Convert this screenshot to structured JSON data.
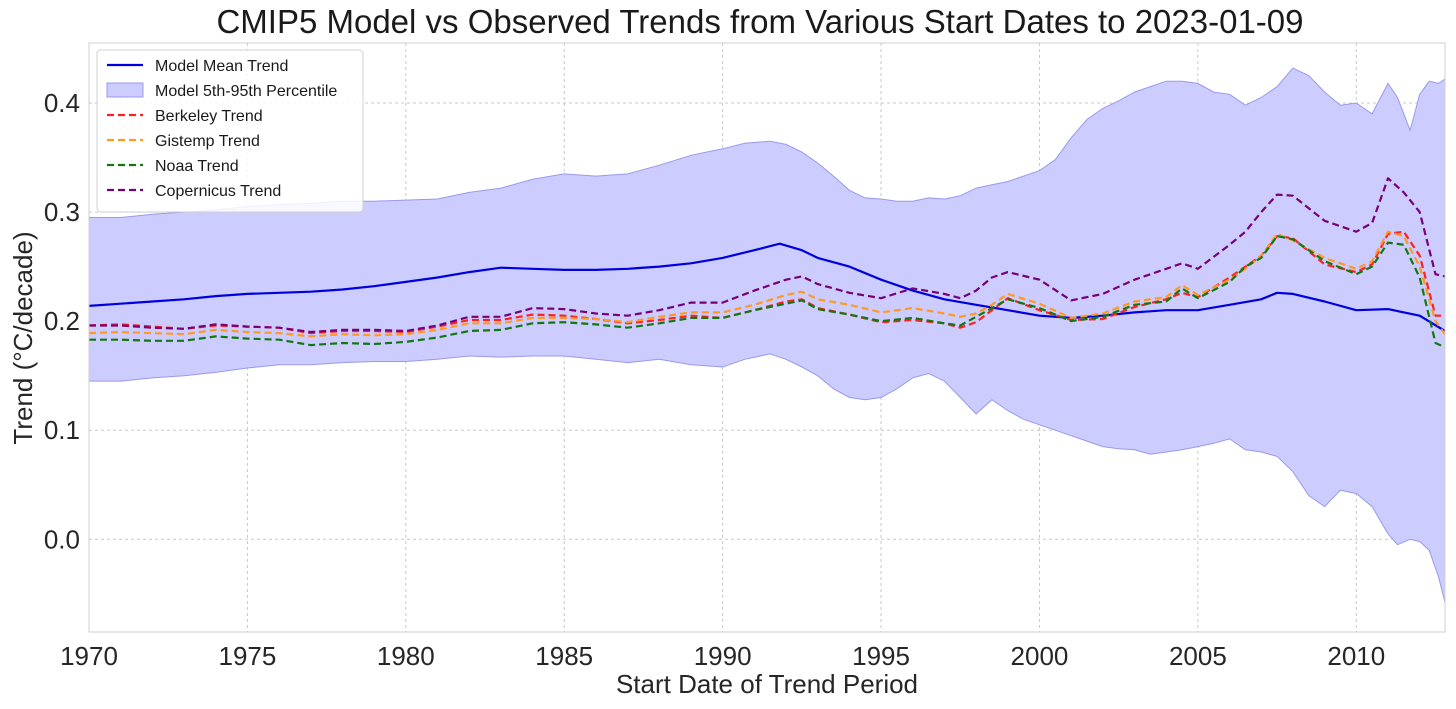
{
  "chart_data": {
    "type": "line",
    "title": "CMIP5 Model vs Observed Trends from Various Start Dates to 2023-01-09",
    "xlabel": "Start Date of Trend Period",
    "ylabel": "Trend (°C/decade)",
    "xlim": [
      1970,
      2012.8
    ],
    "ylim": [
      -0.085,
      0.455
    ],
    "xticks": [
      1970,
      1975,
      1980,
      1985,
      1990,
      1995,
      2000,
      2005,
      2010
    ],
    "xtick_labels": [
      "1970",
      "1975",
      "1980",
      "1985",
      "1990",
      "1995",
      "2000",
      "2005",
      "2010"
    ],
    "yticks": [
      0.0,
      0.1,
      0.2,
      0.3,
      0.4
    ],
    "ytick_labels": [
      "0.0",
      "0.1",
      "0.2",
      "0.3",
      "0.4"
    ],
    "grid": true,
    "legend_position": "top-left",
    "band": {
      "name": "Model 5th-95th Percentile",
      "color": "#ccccff",
      "edge_color": "#9999ee",
      "x": [
        1970,
        1971,
        1972,
        1973,
        1974,
        1975,
        1976,
        1977,
        1978,
        1979,
        1980,
        1981,
        1982,
        1983,
        1984,
        1985,
        1986,
        1987,
        1988,
        1989,
        1990,
        1990.7,
        1991.5,
        1992,
        1992.5,
        1993,
        1993.5,
        1994,
        1994.5,
        1995,
        1995.5,
        1996,
        1996.5,
        1997,
        1997.5,
        1998,
        1998.5,
        1999,
        1999.5,
        2000,
        2000.5,
        2001,
        2001.5,
        2002,
        2002.5,
        2003,
        2003.5,
        2004,
        2004.5,
        2005,
        2005.5,
        2006,
        2006.5,
        2007,
        2007.5,
        2008,
        2008.5,
        2009,
        2009.5,
        2010,
        2010.5,
        2011,
        2011.3,
        2011.7,
        2012,
        2012.3,
        2012.6,
        2012.8
      ],
      "lower": [
        0.145,
        0.145,
        0.148,
        0.15,
        0.153,
        0.157,
        0.16,
        0.16,
        0.162,
        0.163,
        0.163,
        0.165,
        0.168,
        0.167,
        0.168,
        0.168,
        0.165,
        0.162,
        0.165,
        0.16,
        0.158,
        0.165,
        0.17,
        0.165,
        0.158,
        0.15,
        0.138,
        0.13,
        0.128,
        0.13,
        0.138,
        0.148,
        0.152,
        0.145,
        0.13,
        0.115,
        0.128,
        0.118,
        0.11,
        0.105,
        0.1,
        0.095,
        0.09,
        0.085,
        0.083,
        0.082,
        0.078,
        0.08,
        0.082,
        0.085,
        0.088,
        0.092,
        0.082,
        0.08,
        0.076,
        0.062,
        0.04,
        0.03,
        0.045,
        0.042,
        0.03,
        0.005,
        -0.005,
        0.0,
        -0.002,
        -0.01,
        -0.035,
        -0.058
      ],
      "upper": [
        0.295,
        0.295,
        0.298,
        0.3,
        0.302,
        0.305,
        0.307,
        0.308,
        0.31,
        0.31,
        0.311,
        0.312,
        0.318,
        0.322,
        0.33,
        0.335,
        0.333,
        0.335,
        0.343,
        0.352,
        0.358,
        0.363,
        0.365,
        0.362,
        0.355,
        0.345,
        0.333,
        0.32,
        0.313,
        0.312,
        0.31,
        0.31,
        0.313,
        0.312,
        0.315,
        0.322,
        0.325,
        0.328,
        0.333,
        0.338,
        0.348,
        0.368,
        0.385,
        0.395,
        0.402,
        0.41,
        0.415,
        0.42,
        0.42,
        0.418,
        0.41,
        0.408,
        0.398,
        0.405,
        0.415,
        0.432,
        0.425,
        0.41,
        0.398,
        0.4,
        0.39,
        0.418,
        0.405,
        0.375,
        0.408,
        0.42,
        0.418,
        0.422
      ]
    },
    "series": [
      {
        "name": "Model Mean Trend",
        "color": "#0000dd",
        "dash": "solid",
        "x": [
          1970,
          1971,
          1972,
          1973,
          1974,
          1975,
          1976,
          1977,
          1978,
          1979,
          1980,
          1981,
          1982,
          1983,
          1984,
          1985,
          1986,
          1987,
          1988,
          1989,
          1990,
          1991,
          1991.8,
          1992.5,
          1993,
          1994,
          1995,
          1996,
          1997,
          1998,
          1999,
          2000,
          2001,
          2002,
          2003,
          2004,
          2005,
          2006,
          2007,
          2007.5,
          2008,
          2009,
          2010,
          2011,
          2012,
          2012.8
        ],
        "values": [
          0.214,
          0.216,
          0.218,
          0.22,
          0.223,
          0.225,
          0.226,
          0.227,
          0.229,
          0.232,
          0.236,
          0.24,
          0.245,
          0.249,
          0.248,
          0.247,
          0.247,
          0.248,
          0.25,
          0.253,
          0.258,
          0.265,
          0.271,
          0.265,
          0.258,
          0.25,
          0.238,
          0.228,
          0.22,
          0.215,
          0.21,
          0.205,
          0.203,
          0.205,
          0.208,
          0.21,
          0.21,
          0.215,
          0.22,
          0.226,
          0.225,
          0.218,
          0.21,
          0.211,
          0.205,
          0.191
        ]
      },
      {
        "name": "Berkeley Trend",
        "color": "#ff2020",
        "dash": "dashed",
        "x": [
          1970,
          1971,
          1972,
          1973,
          1974,
          1975,
          1976,
          1977,
          1978,
          1979,
          1980,
          1981,
          1982,
          1983,
          1984,
          1985,
          1986,
          1987,
          1988,
          1989,
          1990,
          1991,
          1992,
          1992.5,
          1993,
          1994,
          1995,
          1996,
          1997,
          1997.5,
          1998,
          1998.5,
          1999,
          2000,
          2001,
          2002,
          2003,
          2004,
          2004.5,
          2005,
          2006,
          2006.5,
          2007,
          2007.5,
          2008,
          2009,
          2010,
          2010.5,
          2011,
          2011.5,
          2012,
          2012.5,
          2012.8
        ],
        "values": [
          0.196,
          0.197,
          0.195,
          0.193,
          0.196,
          0.195,
          0.194,
          0.189,
          0.191,
          0.191,
          0.19,
          0.195,
          0.201,
          0.201,
          0.206,
          0.205,
          0.202,
          0.198,
          0.201,
          0.205,
          0.203,
          0.21,
          0.218,
          0.22,
          0.212,
          0.206,
          0.199,
          0.201,
          0.198,
          0.194,
          0.199,
          0.21,
          0.221,
          0.21,
          0.201,
          0.202,
          0.213,
          0.22,
          0.226,
          0.222,
          0.24,
          0.25,
          0.26,
          0.278,
          0.276,
          0.252,
          0.245,
          0.252,
          0.28,
          0.282,
          0.26,
          0.205,
          0.205
        ]
      },
      {
        "name": "Gistemp Trend",
        "color": "#ff9922",
        "dash": "dashed",
        "x": [
          1970,
          1971,
          1972,
          1973,
          1974,
          1975,
          1976,
          1977,
          1978,
          1979,
          1980,
          1981,
          1982,
          1983,
          1984,
          1985,
          1986,
          1987,
          1988,
          1989,
          1990,
          1991,
          1992,
          1992.5,
          1993,
          1994,
          1995,
          1996,
          1997,
          1997.5,
          1998,
          1998.5,
          1999,
          2000,
          2001,
          2002,
          2003,
          2004,
          2004.5,
          2005,
          2006,
          2006.5,
          2007,
          2007.5,
          2008,
          2009,
          2010,
          2010.5,
          2011,
          2011.5,
          2012,
          2012.5,
          2012.8
        ],
        "values": [
          0.189,
          0.19,
          0.189,
          0.188,
          0.192,
          0.19,
          0.189,
          0.186,
          0.188,
          0.187,
          0.188,
          0.192,
          0.198,
          0.198,
          0.203,
          0.203,
          0.202,
          0.199,
          0.204,
          0.208,
          0.208,
          0.215,
          0.224,
          0.227,
          0.22,
          0.215,
          0.208,
          0.212,
          0.207,
          0.204,
          0.207,
          0.215,
          0.225,
          0.216,
          0.203,
          0.207,
          0.218,
          0.222,
          0.233,
          0.224,
          0.238,
          0.248,
          0.26,
          0.28,
          0.274,
          0.258,
          0.248,
          0.255,
          0.282,
          0.278,
          0.25,
          0.2,
          0.188
        ]
      },
      {
        "name": "Noaa Trend",
        "color": "#117711",
        "dash": "dashed",
        "x": [
          1970,
          1971,
          1972,
          1973,
          1974,
          1975,
          1976,
          1977,
          1978,
          1979,
          1980,
          1981,
          1982,
          1983,
          1984,
          1985,
          1986,
          1987,
          1988,
          1989,
          1990,
          1991,
          1992,
          1992.5,
          1993,
          1994,
          1995,
          1996,
          1997,
          1997.5,
          1998,
          1998.5,
          1999,
          2000,
          2001,
          2002,
          2003,
          2004,
          2004.5,
          2005,
          2006,
          2006.5,
          2007,
          2007.5,
          2008,
          2009,
          2010,
          2010.5,
          2011,
          2011.5,
          2012,
          2012.5,
          2012.8
        ],
        "values": [
          0.183,
          0.183,
          0.182,
          0.182,
          0.186,
          0.184,
          0.183,
          0.178,
          0.18,
          0.179,
          0.181,
          0.185,
          0.191,
          0.192,
          0.198,
          0.199,
          0.197,
          0.194,
          0.198,
          0.203,
          0.203,
          0.21,
          0.216,
          0.219,
          0.211,
          0.206,
          0.2,
          0.203,
          0.198,
          0.196,
          0.204,
          0.212,
          0.22,
          0.212,
          0.2,
          0.204,
          0.215,
          0.218,
          0.23,
          0.221,
          0.236,
          0.25,
          0.258,
          0.278,
          0.275,
          0.255,
          0.243,
          0.25,
          0.272,
          0.27,
          0.24,
          0.18,
          0.176
        ]
      },
      {
        "name": "Copernicus Trend",
        "color": "#770077",
        "dash": "dashed",
        "x": [
          1970,
          1971,
          1972,
          1973,
          1974,
          1975,
          1976,
          1977,
          1978,
          1979,
          1980,
          1981,
          1982,
          1983,
          1984,
          1985,
          1986,
          1987,
          1988,
          1989,
          1990,
          1991,
          1992,
          1992.5,
          1993,
          1994,
          1995,
          1996,
          1997,
          1997.5,
          1998,
          1998.5,
          1999,
          2000,
          2001,
          2002,
          2003,
          2004,
          2004.5,
          2005,
          2006,
          2006.5,
          2007,
          2007.5,
          2008,
          2009,
          2010,
          2010.5,
          2011,
          2011.5,
          2012,
          2012.5,
          2012.8
        ],
        "values": [
          0.196,
          0.196,
          0.194,
          0.193,
          0.197,
          0.195,
          0.194,
          0.19,
          0.192,
          0.192,
          0.191,
          0.196,
          0.204,
          0.204,
          0.212,
          0.211,
          0.207,
          0.205,
          0.21,
          0.217,
          0.217,
          0.228,
          0.238,
          0.241,
          0.234,
          0.226,
          0.221,
          0.23,
          0.225,
          0.221,
          0.228,
          0.24,
          0.245,
          0.238,
          0.219,
          0.225,
          0.238,
          0.248,
          0.253,
          0.248,
          0.27,
          0.282,
          0.3,
          0.316,
          0.315,
          0.292,
          0.282,
          0.29,
          0.331,
          0.318,
          0.3,
          0.243,
          0.241
        ]
      }
    ],
    "legend": [
      {
        "label": "Model Mean Trend",
        "kind": "line",
        "color": "#0000dd",
        "dash": "solid"
      },
      {
        "label": "Model 5th-95th Percentile",
        "kind": "patch",
        "color": "#ccccff",
        "edge": "#9999ee"
      },
      {
        "label": "Berkeley Trend",
        "kind": "line",
        "color": "#ff2020",
        "dash": "dashed"
      },
      {
        "label": "Gistemp Trend",
        "kind": "line",
        "color": "#ff9922",
        "dash": "dashed"
      },
      {
        "label": "Noaa Trend",
        "kind": "line",
        "color": "#117711",
        "dash": "dashed"
      },
      {
        "label": "Copernicus Trend",
        "kind": "line",
        "color": "#770077",
        "dash": "dashed"
      }
    ]
  }
}
